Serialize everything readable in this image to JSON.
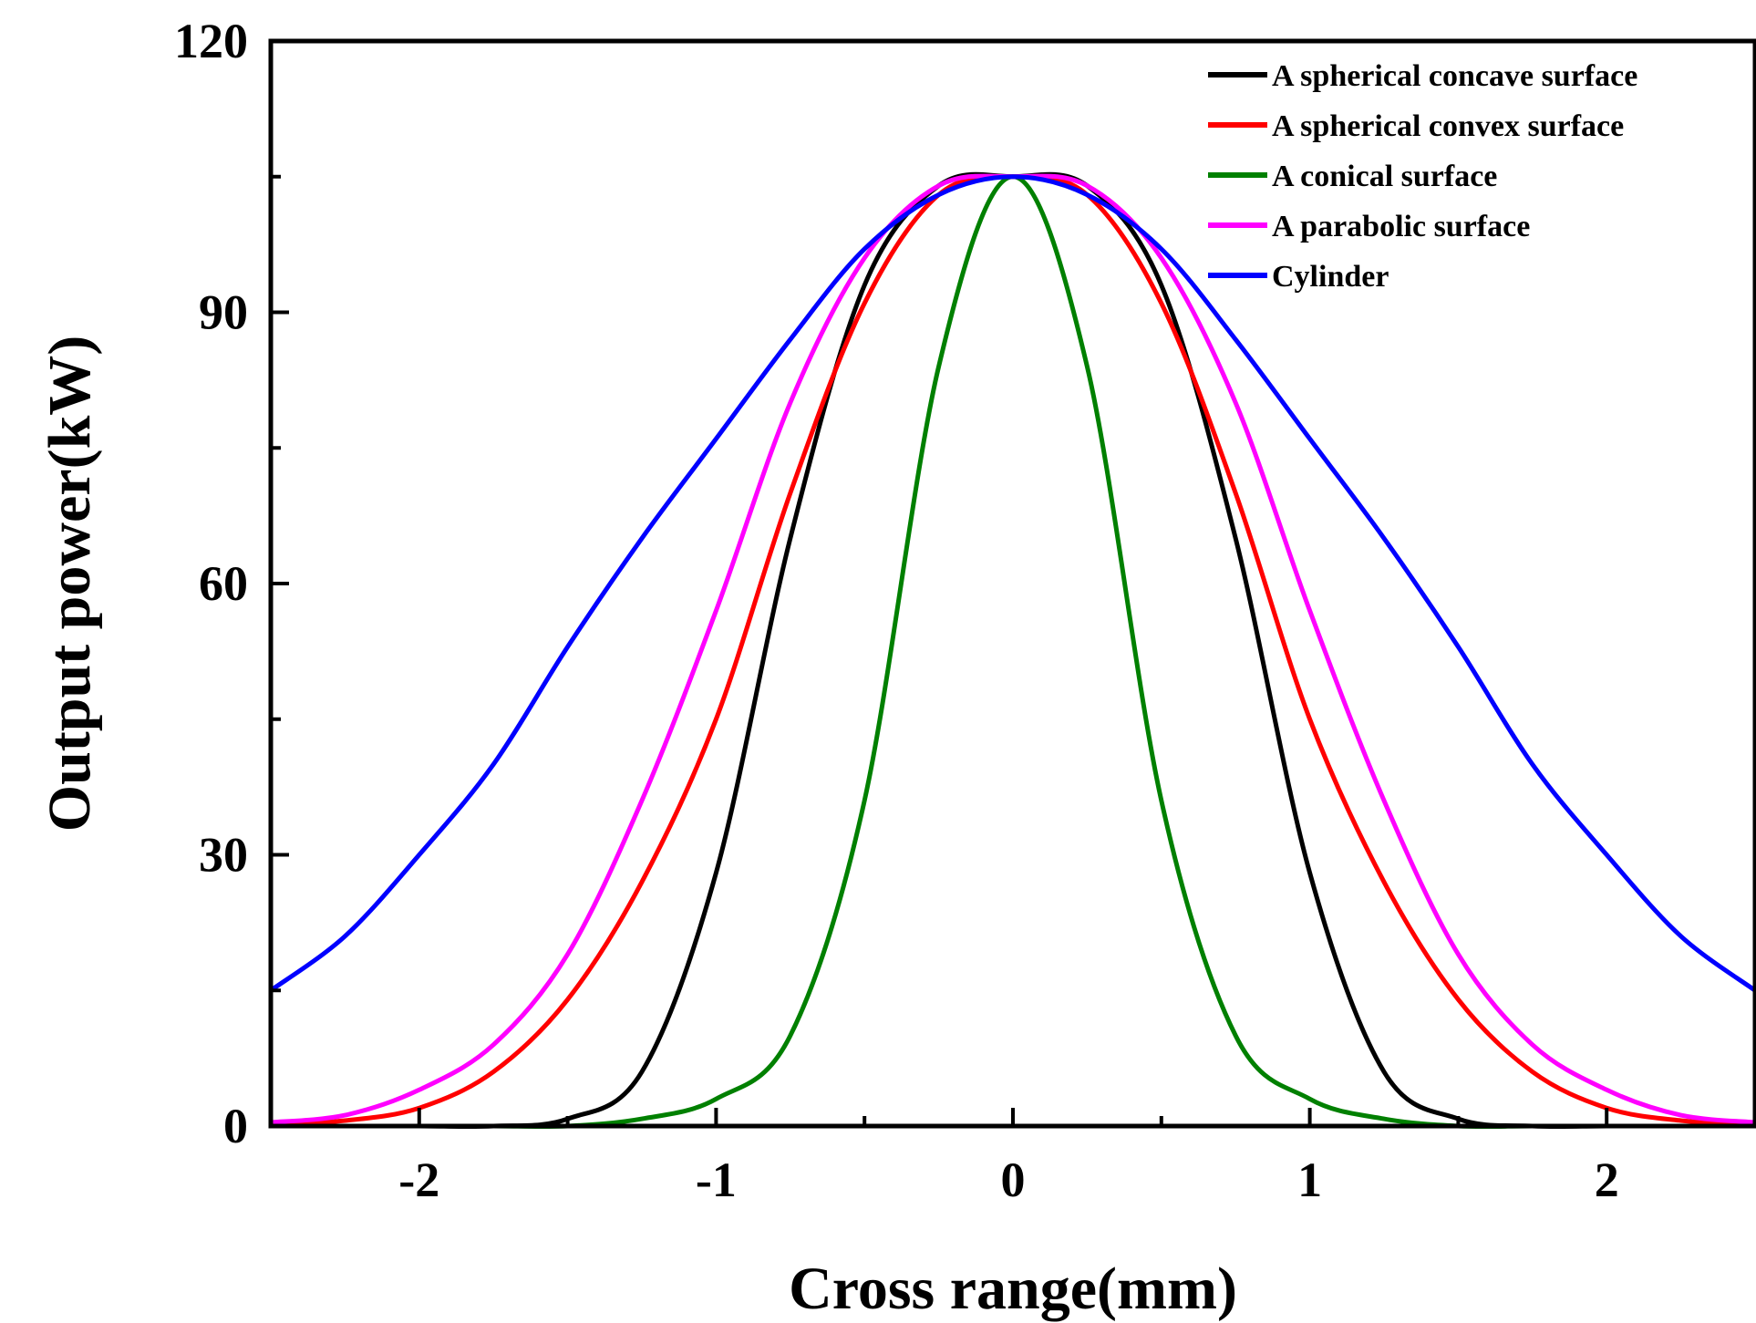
{
  "chart_data": {
    "type": "line",
    "title": "",
    "xlabel": "Cross range(mm)",
    "ylabel": "Output power(kW)",
    "xlim": [
      -2.5,
      2.5
    ],
    "ylim": [
      0,
      120
    ],
    "xticks": [
      -2,
      -1,
      0,
      1,
      2
    ],
    "xtick_labels": [
      "-2",
      "-1",
      "0",
      "1",
      "2"
    ],
    "yticks": [
      0,
      30,
      60,
      90,
      120
    ],
    "ytick_labels": [
      "0",
      "30",
      "60",
      "90",
      "120"
    ],
    "grid": false,
    "legend_position": "top-right",
    "x": [
      -2.5,
      -2.25,
      -2.0,
      -1.75,
      -1.5,
      -1.25,
      -1.0,
      -0.75,
      -0.5,
      -0.25,
      0.0,
      0.25,
      0.5,
      0.75,
      1.0,
      1.25,
      1.5,
      1.75,
      2.0,
      2.25,
      2.5
    ],
    "series": [
      {
        "name": "A spherical concave surface",
        "color": "#000000",
        "values": [
          0,
          0,
          0,
          0,
          0.8,
          6,
          28,
          65,
          93,
          104,
          105,
          104,
          93,
          65,
          28,
          6,
          0.8,
          0,
          0,
          0,
          0
        ]
      },
      {
        "name": "A spherical convex surface",
        "color": "#ff0000",
        "values": [
          0.2,
          0.6,
          2,
          6,
          14,
          27,
          45,
          70,
          91,
          103,
          105,
          103,
          91,
          70,
          45,
          27,
          14,
          6,
          2,
          0.6,
          0.2
        ]
      },
      {
        "name": "A conical surface",
        "color": "#008000",
        "values": [
          0,
          0,
          0,
          0,
          0,
          0.8,
          3,
          10,
          36,
          84,
          105,
          84,
          36,
          10,
          3,
          0.8,
          0,
          0,
          0,
          0,
          0
        ]
      },
      {
        "name": "A parabolic surface",
        "color": "#ff00ff",
        "values": [
          0.4,
          1.2,
          4,
          9,
          19,
          36,
          57,
          80,
          96,
          104,
          105,
          104,
          96,
          80,
          57,
          36,
          19,
          9,
          4,
          1.2,
          0.4
        ]
      },
      {
        "name": "Cylinder",
        "color": "#0000ff",
        "values": [
          15,
          21,
          30,
          40,
          53,
          65,
          76,
          87,
          97,
          103,
          105,
          103,
          97,
          87,
          76,
          65,
          53,
          40,
          30,
          21,
          15
        ]
      }
    ]
  }
}
